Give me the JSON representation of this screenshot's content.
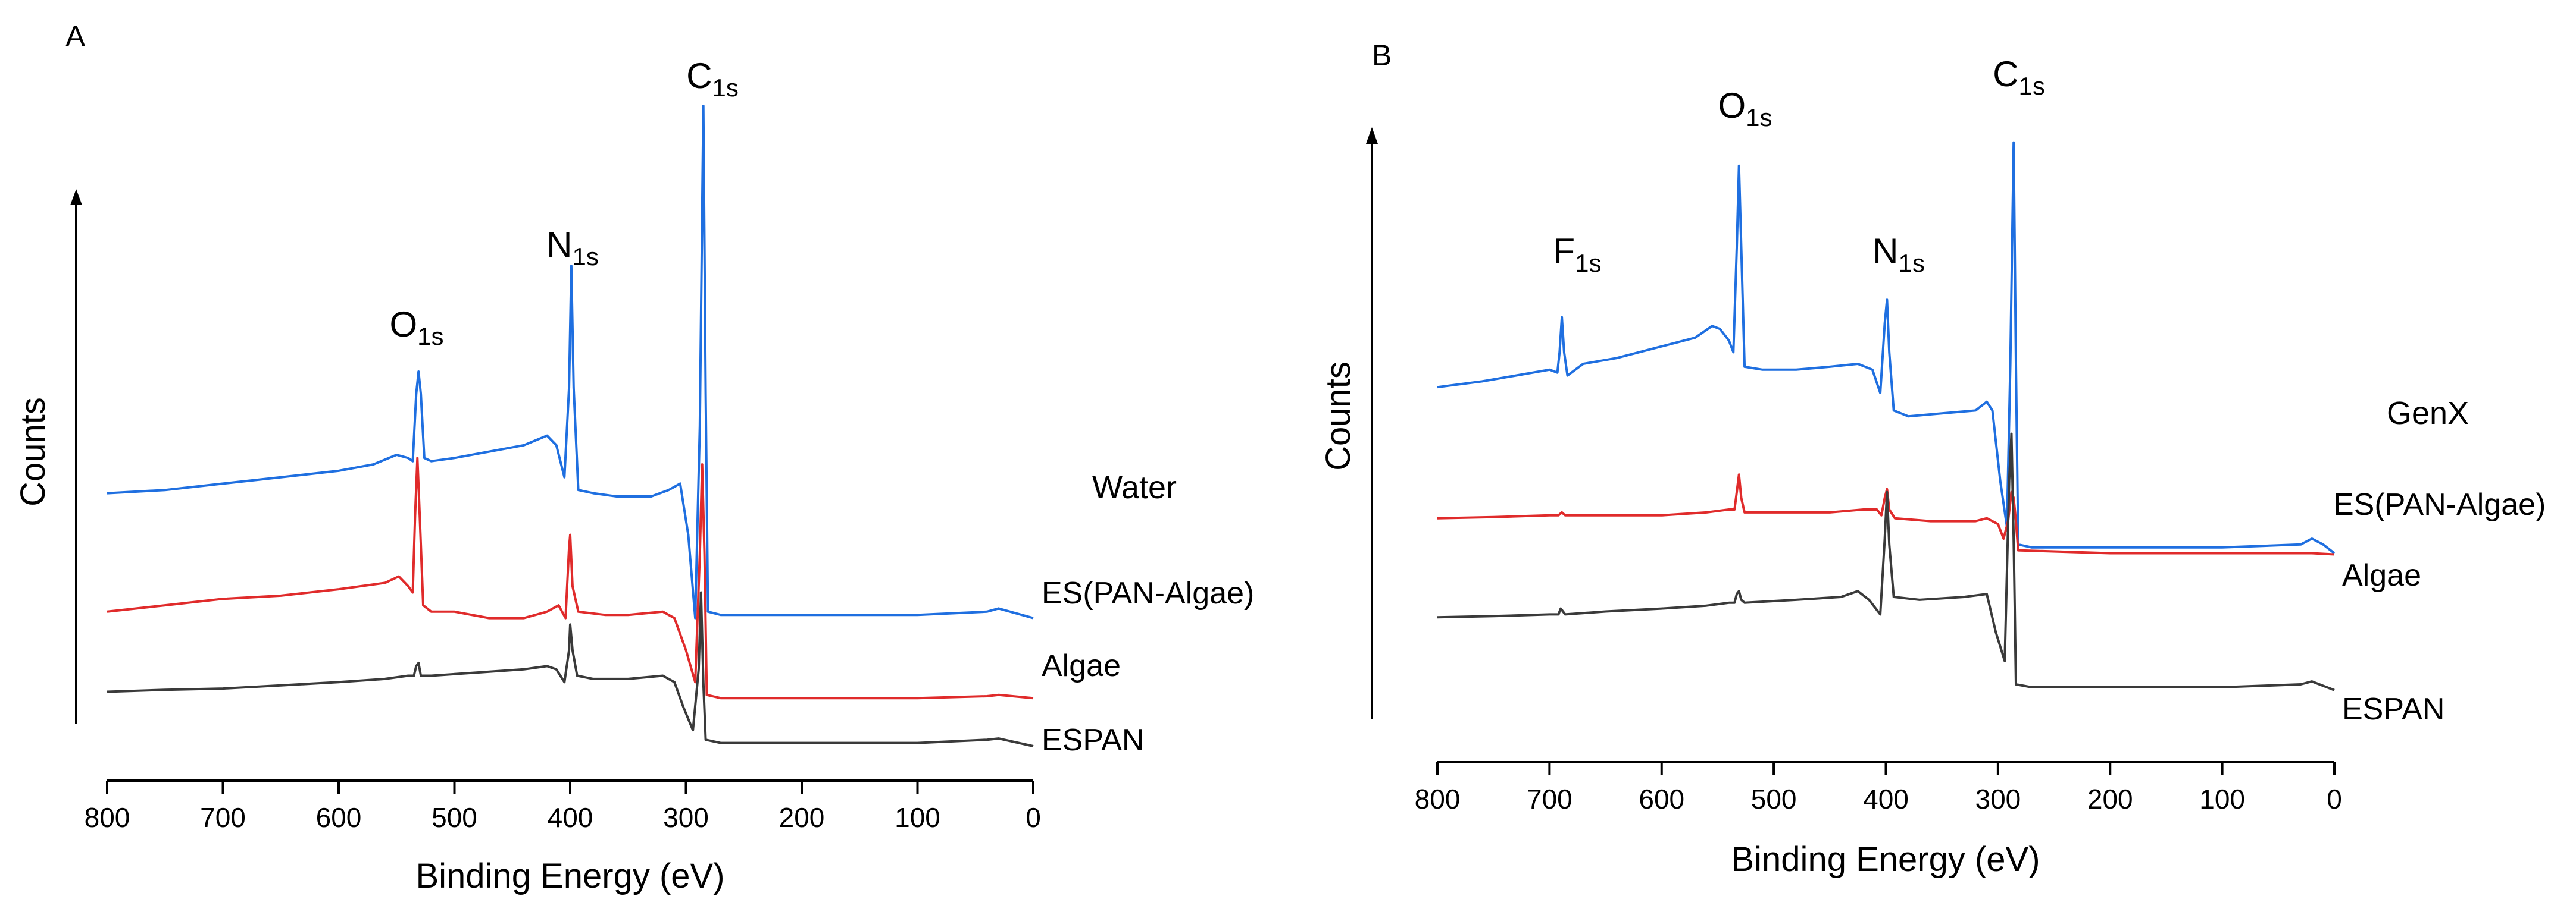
{
  "chart_data": [
    {
      "type": "line",
      "panel_label": "A",
      "condition_label": "Water",
      "xlabel": "Binding Energy (eV)",
      "ylabel": "Counts",
      "xlim": [
        800,
        0
      ],
      "xticks": [
        800,
        700,
        600,
        500,
        400,
        300,
        200,
        100,
        0
      ],
      "ylim": [
        0,
        1
      ],
      "peak_labels": [
        {
          "element": "O",
          "sub": "1s",
          "x": 531
        },
        {
          "element": "N",
          "sub": "1s",
          "x": 399
        },
        {
          "element": "C",
          "sub": "1s",
          "x": 285
        }
      ],
      "series": [
        {
          "name": "ES(PAN-Algae)",
          "color": "#1f6fe0",
          "points": [
            [
              800,
              0.395
            ],
            [
              750,
              0.4
            ],
            [
              700,
              0.41
            ],
            [
              650,
              0.42
            ],
            [
              600,
              0.43
            ],
            [
              570,
              0.44
            ],
            [
              550,
              0.455
            ],
            [
              540,
              0.45
            ],
            [
              536,
              0.445
            ],
            [
              533,
              0.55
            ],
            [
              531,
              0.585
            ],
            [
              529,
              0.55
            ],
            [
              526,
              0.45
            ],
            [
              520,
              0.445
            ],
            [
              500,
              0.45
            ],
            [
              470,
              0.46
            ],
            [
              440,
              0.47
            ],
            [
              420,
              0.485
            ],
            [
              412,
              0.47
            ],
            [
              405,
              0.42
            ],
            [
              401,
              0.56
            ],
            [
              399,
              0.75
            ],
            [
              397,
              0.56
            ],
            [
              393,
              0.4
            ],
            [
              380,
              0.395
            ],
            [
              360,
              0.39
            ],
            [
              330,
              0.39
            ],
            [
              315,
              0.4
            ],
            [
              305,
              0.41
            ],
            [
              298,
              0.33
            ],
            [
              292,
              0.2
            ],
            [
              288,
              0.5
            ],
            [
              285,
              1.0
            ],
            [
              283,
              0.55
            ],
            [
              281,
              0.21
            ],
            [
              270,
              0.205
            ],
            [
              200,
              0.205
            ],
            [
              100,
              0.205
            ],
            [
              40,
              0.21
            ],
            [
              30,
              0.215
            ],
            [
              20,
              0.21
            ],
            [
              0,
              0.2
            ]
          ]
        },
        {
          "name": "Algae",
          "color": "#e02b2b",
          "points": [
            [
              800,
              0.21
            ],
            [
              750,
              0.22
            ],
            [
              700,
              0.23
            ],
            [
              650,
              0.235
            ],
            [
              600,
              0.245
            ],
            [
              560,
              0.255
            ],
            [
              548,
              0.265
            ],
            [
              540,
              0.25
            ],
            [
              536,
              0.24
            ],
            [
              534,
              0.36
            ],
            [
              532,
              0.45
            ],
            [
              530,
              0.36
            ],
            [
              527,
              0.22
            ],
            [
              520,
              0.21
            ],
            [
              500,
              0.21
            ],
            [
              470,
              0.2
            ],
            [
              440,
              0.2
            ],
            [
              420,
              0.21
            ],
            [
              410,
              0.22
            ],
            [
              404,
              0.2
            ],
            [
              401,
              0.31
            ],
            [
              400,
              0.33
            ],
            [
              398,
              0.25
            ],
            [
              393,
              0.21
            ],
            [
              370,
              0.205
            ],
            [
              350,
              0.205
            ],
            [
              320,
              0.21
            ],
            [
              310,
              0.2
            ],
            [
              300,
              0.15
            ],
            [
              292,
              0.1
            ],
            [
              288,
              0.3
            ],
            [
              286,
              0.44
            ],
            [
              284,
              0.3
            ],
            [
              282,
              0.08
            ],
            [
              270,
              0.075
            ],
            [
              200,
              0.075
            ],
            [
              100,
              0.075
            ],
            [
              40,
              0.078
            ],
            [
              30,
              0.08
            ],
            [
              0,
              0.075
            ]
          ]
        },
        {
          "name": "ESPAN",
          "color": "#3a3a3a",
          "points": [
            [
              800,
              0.085
            ],
            [
              750,
              0.088
            ],
            [
              700,
              0.09
            ],
            [
              650,
              0.095
            ],
            [
              600,
              0.1
            ],
            [
              560,
              0.105
            ],
            [
              540,
              0.11
            ],
            [
              535,
              0.11
            ],
            [
              533,
              0.125
            ],
            [
              531,
              0.13
            ],
            [
              529,
              0.11
            ],
            [
              520,
              0.11
            ],
            [
              480,
              0.115
            ],
            [
              440,
              0.12
            ],
            [
              420,
              0.125
            ],
            [
              412,
              0.12
            ],
            [
              405,
              0.1
            ],
            [
              401,
              0.15
            ],
            [
              400,
              0.19
            ],
            [
              398,
              0.15
            ],
            [
              394,
              0.11
            ],
            [
              380,
              0.105
            ],
            [
              350,
              0.105
            ],
            [
              320,
              0.11
            ],
            [
              310,
              0.1
            ],
            [
              302,
              0.06
            ],
            [
              294,
              0.025
            ],
            [
              289,
              0.12
            ],
            [
              287,
              0.24
            ],
            [
              285,
              0.1
            ],
            [
              283,
              0.01
            ],
            [
              270,
              0.005
            ],
            [
              200,
              0.005
            ],
            [
              100,
              0.005
            ],
            [
              40,
              0.01
            ],
            [
              30,
              0.012
            ],
            [
              0,
              0.0
            ]
          ]
        }
      ]
    },
    {
      "type": "line",
      "panel_label": "B",
      "condition_label": "GenX",
      "xlabel": "Binding Energy (eV)",
      "ylabel": "Counts",
      "xlim": [
        800,
        0
      ],
      "xticks": [
        800,
        700,
        600,
        500,
        400,
        300,
        200,
        100,
        0
      ],
      "ylim": [
        0,
        1
      ],
      "peak_labels": [
        {
          "element": "F",
          "sub": "1s",
          "x": 689
        },
        {
          "element": "O",
          "sub": "1s",
          "x": 531
        },
        {
          "element": "N",
          "sub": "1s",
          "x": 399
        },
        {
          "element": "C",
          "sub": "1s",
          "x": 285
        }
      ],
      "series": [
        {
          "name": "ES(PAN-Algae)",
          "color": "#1f6fe0",
          "points": [
            [
              800,
              0.56
            ],
            [
              760,
              0.57
            ],
            [
              730,
              0.58
            ],
            [
              700,
              0.59
            ],
            [
              693,
              0.585
            ],
            [
              691,
              0.62
            ],
            [
              689,
              0.68
            ],
            [
              687,
              0.62
            ],
            [
              684,
              0.58
            ],
            [
              670,
              0.6
            ],
            [
              640,
              0.61
            ],
            [
              600,
              0.63
            ],
            [
              570,
              0.645
            ],
            [
              555,
              0.665
            ],
            [
              548,
              0.66
            ],
            [
              540,
              0.64
            ],
            [
              536,
              0.62
            ],
            [
              533,
              0.8
            ],
            [
              531,
              0.94
            ],
            [
              529,
              0.8
            ],
            [
              526,
              0.595
            ],
            [
              510,
              0.59
            ],
            [
              480,
              0.59
            ],
            [
              450,
              0.595
            ],
            [
              425,
              0.6
            ],
            [
              412,
              0.59
            ],
            [
              405,
              0.55
            ],
            [
              401,
              0.67
            ],
            [
              399,
              0.71
            ],
            [
              397,
              0.62
            ],
            [
              393,
              0.52
            ],
            [
              380,
              0.51
            ],
            [
              350,
              0.515
            ],
            [
              320,
              0.52
            ],
            [
              310,
              0.535
            ],
            [
              305,
              0.52
            ],
            [
              298,
              0.4
            ],
            [
              292,
              0.32
            ],
            [
              289,
              0.6
            ],
            [
              286,
              0.98
            ],
            [
              284,
              0.6
            ],
            [
              282,
              0.29
            ],
            [
              270,
              0.285
            ],
            [
              200,
              0.285
            ],
            [
              100,
              0.285
            ],
            [
              30,
              0.29
            ],
            [
              20,
              0.3
            ],
            [
              10,
              0.29
            ],
            [
              0,
              0.275
            ]
          ]
        },
        {
          "name": "Algae",
          "color": "#e02b2b",
          "points": [
            [
              800,
              0.335
            ],
            [
              750,
              0.337
            ],
            [
              700,
              0.34
            ],
            [
              692,
              0.34
            ],
            [
              689,
              0.345
            ],
            [
              686,
              0.34
            ],
            [
              650,
              0.34
            ],
            [
              600,
              0.34
            ],
            [
              560,
              0.345
            ],
            [
              540,
              0.35
            ],
            [
              535,
              0.35
            ],
            [
              533,
              0.38
            ],
            [
              531,
              0.41
            ],
            [
              529,
              0.37
            ],
            [
              526,
              0.345
            ],
            [
              500,
              0.345
            ],
            [
              450,
              0.345
            ],
            [
              420,
              0.35
            ],
            [
              408,
              0.35
            ],
            [
              404,
              0.34
            ],
            [
              401,
              0.37
            ],
            [
              399,
              0.385
            ],
            [
              397,
              0.35
            ],
            [
              392,
              0.335
            ],
            [
              360,
              0.33
            ],
            [
              320,
              0.33
            ],
            [
              310,
              0.335
            ],
            [
              300,
              0.325
            ],
            [
              295,
              0.3
            ],
            [
              291,
              0.33
            ],
            [
              288,
              0.38
            ],
            [
              286,
              0.37
            ],
            [
              284,
              0.33
            ],
            [
              282,
              0.28
            ],
            [
              200,
              0.275
            ],
            [
              100,
              0.275
            ],
            [
              20,
              0.275
            ],
            [
              0,
              0.273
            ]
          ]
        },
        {
          "name": "ESPAN",
          "color": "#3a3a3a",
          "points": [
            [
              800,
              0.165
            ],
            [
              750,
              0.167
            ],
            [
              700,
              0.17
            ],
            [
              692,
              0.17
            ],
            [
              690,
              0.18
            ],
            [
              688,
              0.175
            ],
            [
              686,
              0.17
            ],
            [
              650,
              0.175
            ],
            [
              600,
              0.18
            ],
            [
              560,
              0.185
            ],
            [
              540,
              0.19
            ],
            [
              535,
              0.19
            ],
            [
              533,
              0.205
            ],
            [
              531,
              0.21
            ],
            [
              529,
              0.195
            ],
            [
              526,
              0.19
            ],
            [
              480,
              0.195
            ],
            [
              440,
              0.2
            ],
            [
              425,
              0.21
            ],
            [
              415,
              0.195
            ],
            [
              405,
              0.17
            ],
            [
              401,
              0.3
            ],
            [
              399,
              0.38
            ],
            [
              397,
              0.29
            ],
            [
              393,
              0.2
            ],
            [
              370,
              0.195
            ],
            [
              330,
              0.2
            ],
            [
              310,
              0.205
            ],
            [
              302,
              0.14
            ],
            [
              294,
              0.09
            ],
            [
              290,
              0.4
            ],
            [
              288,
              0.48
            ],
            [
              286,
              0.3
            ],
            [
              284,
              0.05
            ],
            [
              270,
              0.045
            ],
            [
              200,
              0.045
            ],
            [
              100,
              0.045
            ],
            [
              30,
              0.05
            ],
            [
              20,
              0.055
            ],
            [
              0,
              0.04
            ]
          ]
        }
      ]
    }
  ]
}
